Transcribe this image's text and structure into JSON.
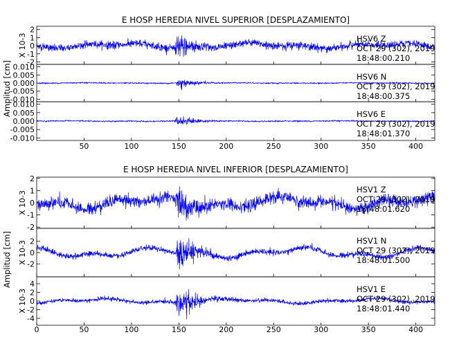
{
  "chart_data": [
    {
      "type": "line",
      "title": "E HOSP HEREDIA NIVEL SUPERIOR [DESPLAZAMIENTO]",
      "ylabel": "Amplitud [cm]",
      "xlim": [
        0,
        420
      ],
      "x_ticks": [
        50,
        100,
        150,
        200,
        250,
        300,
        350,
        400
      ],
      "panels": [
        {
          "id": "sup-z",
          "station": "HSV6",
          "component": "Z",
          "date": "OCT 29 (302), 2019",
          "time": "18:48:00.210",
          "unit": "X 10-3",
          "ylim": [
            -2.3,
            2.4
          ],
          "y_ticks": [
            "2",
            "1",
            "0",
            "-1",
            "-2"
          ],
          "y_tick_values": [
            2,
            1,
            0,
            -1,
            -2
          ],
          "series": [
            {
              "event_peak": 2.3,
              "noise_level": 0.45,
              "long_period": 0.35
            }
          ]
        },
        {
          "id": "sup-n",
          "station": "HSV6",
          "component": "N",
          "date": "OCT 29 (302), 2019",
          "time": "18:48:00.375",
          "unit": "",
          "ylim": [
            -0.0115,
            0.0115
          ],
          "y_ticks": [
            "0.010",
            "0.005",
            "0.000",
            "-0.005",
            "-0.010"
          ],
          "y_tick_values": [
            0.01,
            0.005,
            0.0,
            -0.005,
            -0.01
          ],
          "series": [
            {
              "event_peak": 0.0045,
              "noise_level": 0.0004,
              "long_period": 0.0002
            }
          ]
        },
        {
          "id": "sup-e",
          "station": "HSV6",
          "component": "E",
          "date": "OCT 29 (302), 2019",
          "time": "18:48:01.370",
          "unit": "",
          "ylim": [
            -0.0115,
            0.0115
          ],
          "y_ticks": [
            "0.010",
            "0.005",
            "0.000",
            "-0.005",
            "-0.010"
          ],
          "y_tick_values": [
            0.01,
            0.005,
            0.0,
            -0.005,
            -0.01
          ],
          "series": [
            {
              "event_peak": 0.0045,
              "noise_level": 0.0004,
              "long_period": 0.0002
            }
          ]
        }
      ]
    },
    {
      "type": "line",
      "title": "E HOSP HEREDIA NIVEL INFERIOR [DESPLAZAMIENTO]",
      "ylabel": "Amplitud [cm]",
      "xlim": [
        0,
        420
      ],
      "x_ticks": [
        0,
        50,
        100,
        150,
        200,
        250,
        300,
        350,
        400
      ],
      "panels": [
        {
          "id": "inf-z",
          "station": "HSV1",
          "component": "Z",
          "date": "OCT 29 (302), 2019",
          "time": "18:48:01.620",
          "unit": "X 10-3",
          "ylim": [
            -2.1,
            2.1
          ],
          "y_ticks": [
            "2",
            "1",
            "0",
            "-1",
            "-2"
          ],
          "y_tick_values": [
            2,
            1,
            0,
            -1,
            -2
          ],
          "series": [
            {
              "event_peak": 2.1,
              "noise_level": 0.5,
              "long_period": 0.55
            }
          ]
        },
        {
          "id": "inf-n",
          "station": "HSV1",
          "component": "N",
          "date": "OCT 29 (302), 2019",
          "time": "18:48:01.500",
          "unit": "X 10-3",
          "ylim": [
            -4.3,
            4.3
          ],
          "y_ticks": [
            "2",
            "0",
            "-2"
          ],
          "y_tick_values": [
            2,
            0,
            -2
          ],
          "series": [
            {
              "event_peak": 4.3,
              "noise_level": 0.5,
              "long_period": 1.0
            }
          ]
        },
        {
          "id": "inf-e",
          "station": "HSV1",
          "component": "E",
          "date": "OCT 29 (302), 2019",
          "time": "18:48:01.440",
          "unit": "X 10-3",
          "ylim": [
            -5.6,
            5.6
          ],
          "y_ticks": [
            "4",
            "2",
            "0",
            "-2",
            "-4"
          ],
          "y_tick_values": [
            4,
            2,
            0,
            -2,
            -4
          ],
          "series": [
            {
              "event_peak": 5.5,
              "noise_level": 0.45,
              "long_period": 0.6
            }
          ]
        }
      ]
    }
  ]
}
